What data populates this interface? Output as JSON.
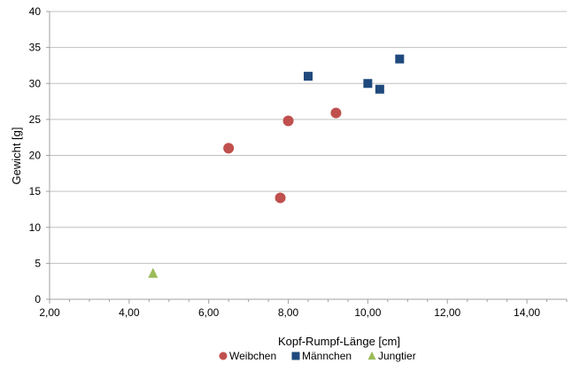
{
  "chart_data": {
    "type": "scatter",
    "title": "",
    "xlabel": "Kopf-Rumpf-Länge [cm]",
    "ylabel": "Gewicht  [g]",
    "xlim": [
      2,
      15
    ],
    "ylim": [
      0,
      40
    ],
    "x_ticks": [
      2,
      4,
      6,
      8,
      10,
      12,
      14
    ],
    "x_tick_labels": [
      "2,00",
      "4,00",
      "6,00",
      "8,00",
      "10,00",
      "12,00",
      "14,00"
    ],
    "y_ticks": [
      0,
      5,
      10,
      15,
      20,
      25,
      30,
      35,
      40
    ],
    "y_tick_labels": [
      "0",
      "5",
      "10",
      "15",
      "20",
      "25",
      "30",
      "35",
      "40"
    ],
    "grid": "horizontal",
    "legend_position": "bottom",
    "series": [
      {
        "name": "Weibchen",
        "marker": "circle",
        "color": "#c0504d",
        "points": [
          {
            "x": 6.5,
            "y": 21.0
          },
          {
            "x": 7.8,
            "y": 14.1
          },
          {
            "x": 8.0,
            "y": 24.8
          },
          {
            "x": 9.2,
            "y": 25.9
          }
        ]
      },
      {
        "name": "Männchen",
        "marker": "square",
        "color": "#1f497d",
        "points": [
          {
            "x": 8.5,
            "y": 31.0
          },
          {
            "x": 10.0,
            "y": 30.0
          },
          {
            "x": 10.3,
            "y": 29.2
          },
          {
            "x": 10.8,
            "y": 33.4
          }
        ]
      },
      {
        "name": "Jungtier",
        "marker": "triangle",
        "color": "#9bbb59",
        "points": [
          {
            "x": 4.6,
            "y": 3.6
          }
        ]
      }
    ]
  }
}
